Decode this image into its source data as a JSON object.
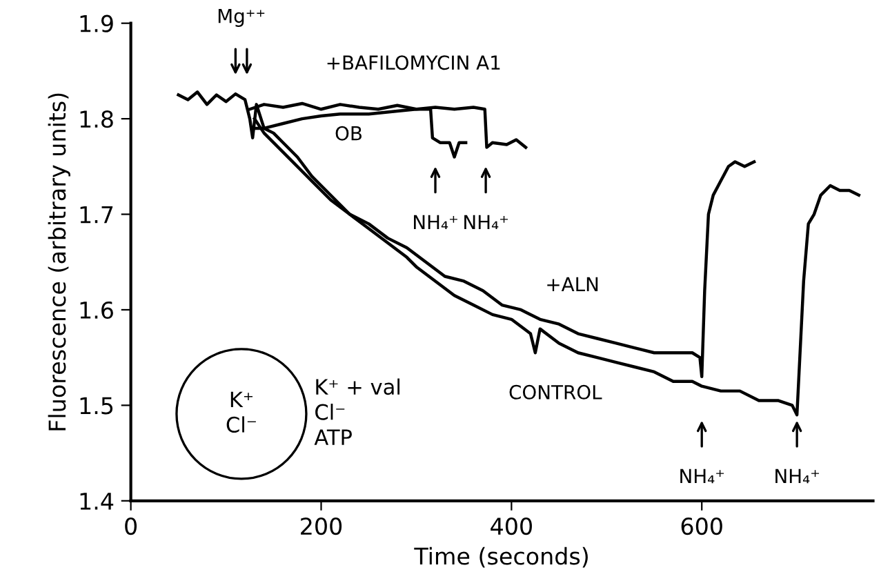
{
  "chart_data": {
    "type": "line",
    "xlabel": "Time (seconds)",
    "ylabel": "Fluorescence (arbitrary units)",
    "xlim": [
      0,
      780
    ],
    "ylim": [
      1.4,
      1.9
    ],
    "xticks": [
      0,
      200,
      400,
      600
    ],
    "yticks": [
      1.4,
      1.5,
      1.6,
      1.7,
      1.8,
      1.9
    ],
    "grid": false,
    "legend": false,
    "marker": "none",
    "line_style": "solid",
    "series": [
      {
        "name": "CONTROL",
        "color": "#000000",
        "x": [
          50,
          60,
          70,
          80,
          90,
          100,
          110,
          120,
          125,
          128,
          132,
          140,
          150,
          160,
          175,
          190,
          200,
          215,
          230,
          250,
          270,
          290,
          300,
          320,
          340,
          360,
          380,
          400,
          420,
          425,
          430,
          450,
          470,
          490,
          510,
          530,
          550,
          570,
          590,
          600,
          620,
          640,
          660,
          680,
          695,
          700,
          703,
          707,
          712,
          718,
          725,
          735,
          745,
          755,
          765
        ],
        "values": [
          1.825,
          1.82,
          1.828,
          1.815,
          1.825,
          1.818,
          1.826,
          1.82,
          1.8,
          1.78,
          1.815,
          1.79,
          1.785,
          1.775,
          1.76,
          1.74,
          1.73,
          1.715,
          1.7,
          1.685,
          1.67,
          1.655,
          1.645,
          1.63,
          1.615,
          1.605,
          1.595,
          1.59,
          1.575,
          1.555,
          1.58,
          1.565,
          1.555,
          1.55,
          1.545,
          1.54,
          1.535,
          1.525,
          1.525,
          1.52,
          1.515,
          1.515,
          1.505,
          1.505,
          1.5,
          1.49,
          1.55,
          1.63,
          1.69,
          1.7,
          1.72,
          1.73,
          1.725,
          1.725,
          1.72
        ]
      },
      {
        "name": "+ALN",
        "color": "#000000",
        "x": [
          130,
          140,
          155,
          170,
          190,
          210,
          230,
          250,
          270,
          290,
          310,
          330,
          350,
          370,
          390,
          410,
          430,
          450,
          470,
          490,
          510,
          530,
          550,
          570,
          590,
          598,
          600,
          603,
          607,
          612,
          620,
          628,
          635,
          645,
          655
        ],
        "values": [
          1.8,
          1.785,
          1.77,
          1.755,
          1.735,
          1.715,
          1.7,
          1.69,
          1.675,
          1.665,
          1.65,
          1.635,
          1.63,
          1.62,
          1.605,
          1.6,
          1.59,
          1.585,
          1.575,
          1.57,
          1.565,
          1.56,
          1.555,
          1.555,
          1.555,
          1.55,
          1.53,
          1.62,
          1.7,
          1.72,
          1.735,
          1.75,
          1.755,
          1.75,
          1.755
        ]
      },
      {
        "name": "+BAFILOMYCIN A1",
        "color": "#000000",
        "x": [
          125,
          140,
          160,
          180,
          200,
          220,
          240,
          260,
          280,
          300,
          320,
          340,
          360,
          372,
          374,
          380,
          395,
          405,
          415
        ],
        "values": [
          1.81,
          1.815,
          1.812,
          1.816,
          1.81,
          1.815,
          1.812,
          1.81,
          1.814,
          1.81,
          1.812,
          1.81,
          1.812,
          1.81,
          1.77,
          1.775,
          1.773,
          1.778,
          1.77
        ]
      },
      {
        "name": "OB",
        "color": "#000000",
        "x": [
          128,
          140,
          160,
          180,
          200,
          220,
          250,
          280,
          300,
          315,
          317,
          325,
          335,
          340,
          345,
          352
        ],
        "values": [
          1.79,
          1.79,
          1.795,
          1.8,
          1.803,
          1.805,
          1.805,
          1.808,
          1.81,
          1.81,
          1.78,
          1.775,
          1.775,
          1.76,
          1.775,
          1.775
        ]
      }
    ],
    "annotations": [
      "Mg⁺⁺",
      "NH₄⁺",
      "NH₄⁺",
      "NH₄⁺",
      "NH₄⁺",
      "K⁺\nCl⁻",
      "K⁺ + val\nCl⁻\nATP"
    ]
  }
}
